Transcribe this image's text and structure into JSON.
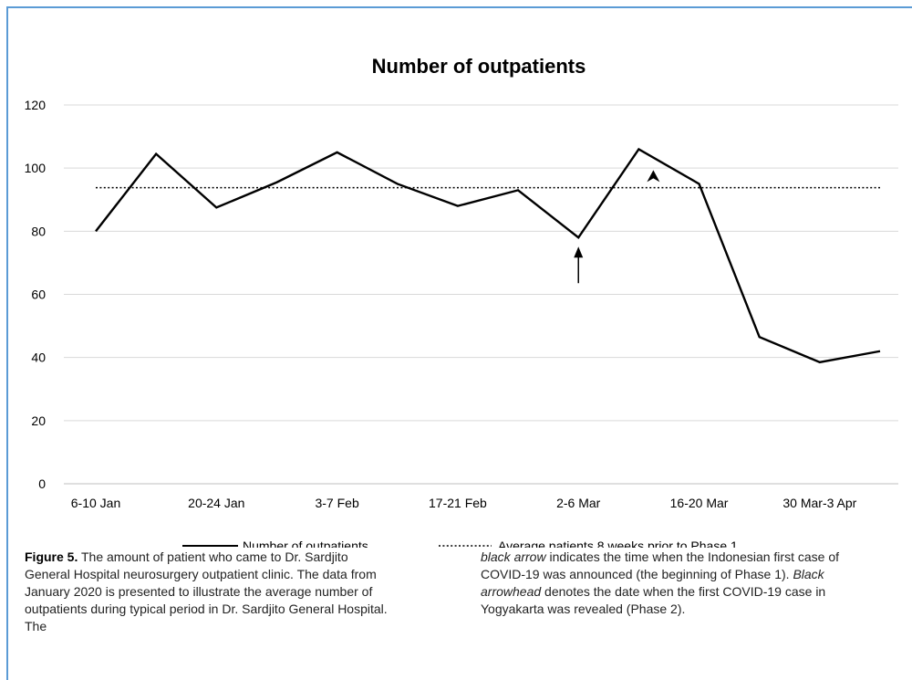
{
  "chart_data": {
    "type": "line",
    "title": "Number of outpatients",
    "x_tick_labels": [
      "6-10 Jan",
      "20-24 Jan",
      "3-7 Feb",
      "17-21 Feb",
      "2-6 Mar",
      "16-20 Mar",
      "30 Mar-3 Apr"
    ],
    "ylim": [
      0,
      120
    ],
    "y_ticks": [
      "0",
      "20",
      "40",
      "60",
      "80",
      "100",
      "120"
    ],
    "grid": true,
    "legend_position": "bottom",
    "series": [
      {
        "name": "Number of outpatients",
        "style": "solid",
        "color": "#000000",
        "values": [
          80,
          104.5,
          87.5,
          95.5,
          105,
          95,
          88,
          93,
          78,
          106,
          95,
          46.5,
          38.5,
          42
        ]
      },
      {
        "name": "Average patients 8 weeks prior to Phase 1",
        "style": "dotted",
        "color": "#000000",
        "values": [
          93.8,
          93.8,
          93.8,
          93.8,
          93.8,
          93.8,
          93.8,
          93.8,
          93.8,
          93.8,
          93.8,
          93.8,
          93.8,
          93.8
        ]
      }
    ],
    "annotations": [
      {
        "type": "arrow",
        "point_index": 8
      },
      {
        "type": "arrowhead",
        "point_index": 9
      }
    ]
  },
  "legend": {
    "solid_label": "Number of outpatients",
    "dotted_label": "Average patients 8 weeks prior to Phase 1"
  },
  "caption": {
    "figure_label": "Figure 5.",
    "left_text": "The amount of patient who came to Dr. Sardjito General Hospital neurosurgery outpatient clinic. The data from January 2020 is presented to illustrate the average number of outpatients during typical period in Dr. Sardjito General Hospital. The",
    "black_arrow": "black arrow",
    "right_text_1": "indicates the time when the Indonesian first case of COVID-19 was announced (the beginning of Phase 1).",
    "black_arrowhead": "Black arrowhead",
    "right_text_2": "denotes the date when the first COVID-19 case in Yogyakarta was revealed (Phase 2)."
  }
}
